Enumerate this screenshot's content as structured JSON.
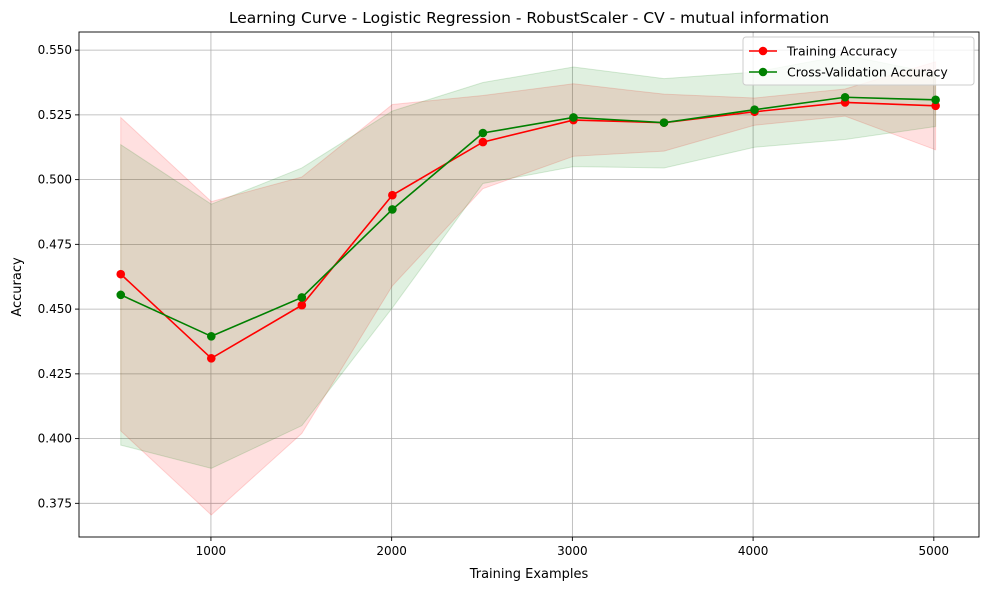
{
  "chart_data": {
    "type": "line",
    "title": "Learning Curve - Logistic Regression - RobustScaler - CV - mutual information",
    "xlabel": "Training Examples",
    "ylabel": "Accuracy",
    "xlim": [
      270,
      5250
    ],
    "ylim": [
      0.362,
      0.557
    ],
    "xticks": [
      1000,
      2000,
      3000,
      4000,
      5000
    ],
    "xtick_labels": [
      "1000",
      "2000",
      "3000",
      "4000",
      "5000"
    ],
    "yticks": [
      0.375,
      0.4,
      0.425,
      0.45,
      0.475,
      0.5,
      0.525,
      0.55
    ],
    "ytick_labels": [
      "0.375",
      "0.400",
      "0.425",
      "0.450",
      "0.475",
      "0.500",
      "0.525",
      "0.550"
    ],
    "grid": true,
    "legend_position": "top-right",
    "x": [
      501,
      1002,
      1503,
      2004,
      2505,
      3006,
      3507,
      4008,
      4509,
      5010
    ],
    "series": [
      {
        "name": "Training Accuracy",
        "color": "#ff0000",
        "values": [
          0.4635,
          0.431,
          0.4515,
          0.494,
          0.5145,
          0.523,
          0.522,
          0.5262,
          0.5298,
          0.5285
        ],
        "band_lower": [
          0.403,
          0.3705,
          0.402,
          0.459,
          0.4965,
          0.509,
          0.511,
          0.521,
          0.5245,
          0.5115
        ],
        "band_upper": [
          0.524,
          0.4915,
          0.501,
          0.529,
          0.5325,
          0.537,
          0.533,
          0.5315,
          0.535,
          0.5455
        ],
        "band_color": "#ff0000",
        "band_opacity": 0.12
      },
      {
        "name": "Cross-Validation Accuracy",
        "color": "#008000",
        "values": [
          0.4555,
          0.4395,
          0.4545,
          0.4885,
          0.518,
          0.524,
          0.522,
          0.527,
          0.5318,
          0.5308
        ],
        "band_lower": [
          0.3975,
          0.3885,
          0.405,
          0.4505,
          0.4985,
          0.505,
          0.5045,
          0.5125,
          0.5155,
          0.5205
        ],
        "band_upper": [
          0.5135,
          0.4905,
          0.5045,
          0.5265,
          0.5375,
          0.5435,
          0.539,
          0.5415,
          0.548,
          0.541
        ],
        "band_color": "#008000",
        "band_opacity": 0.12
      }
    ]
  }
}
